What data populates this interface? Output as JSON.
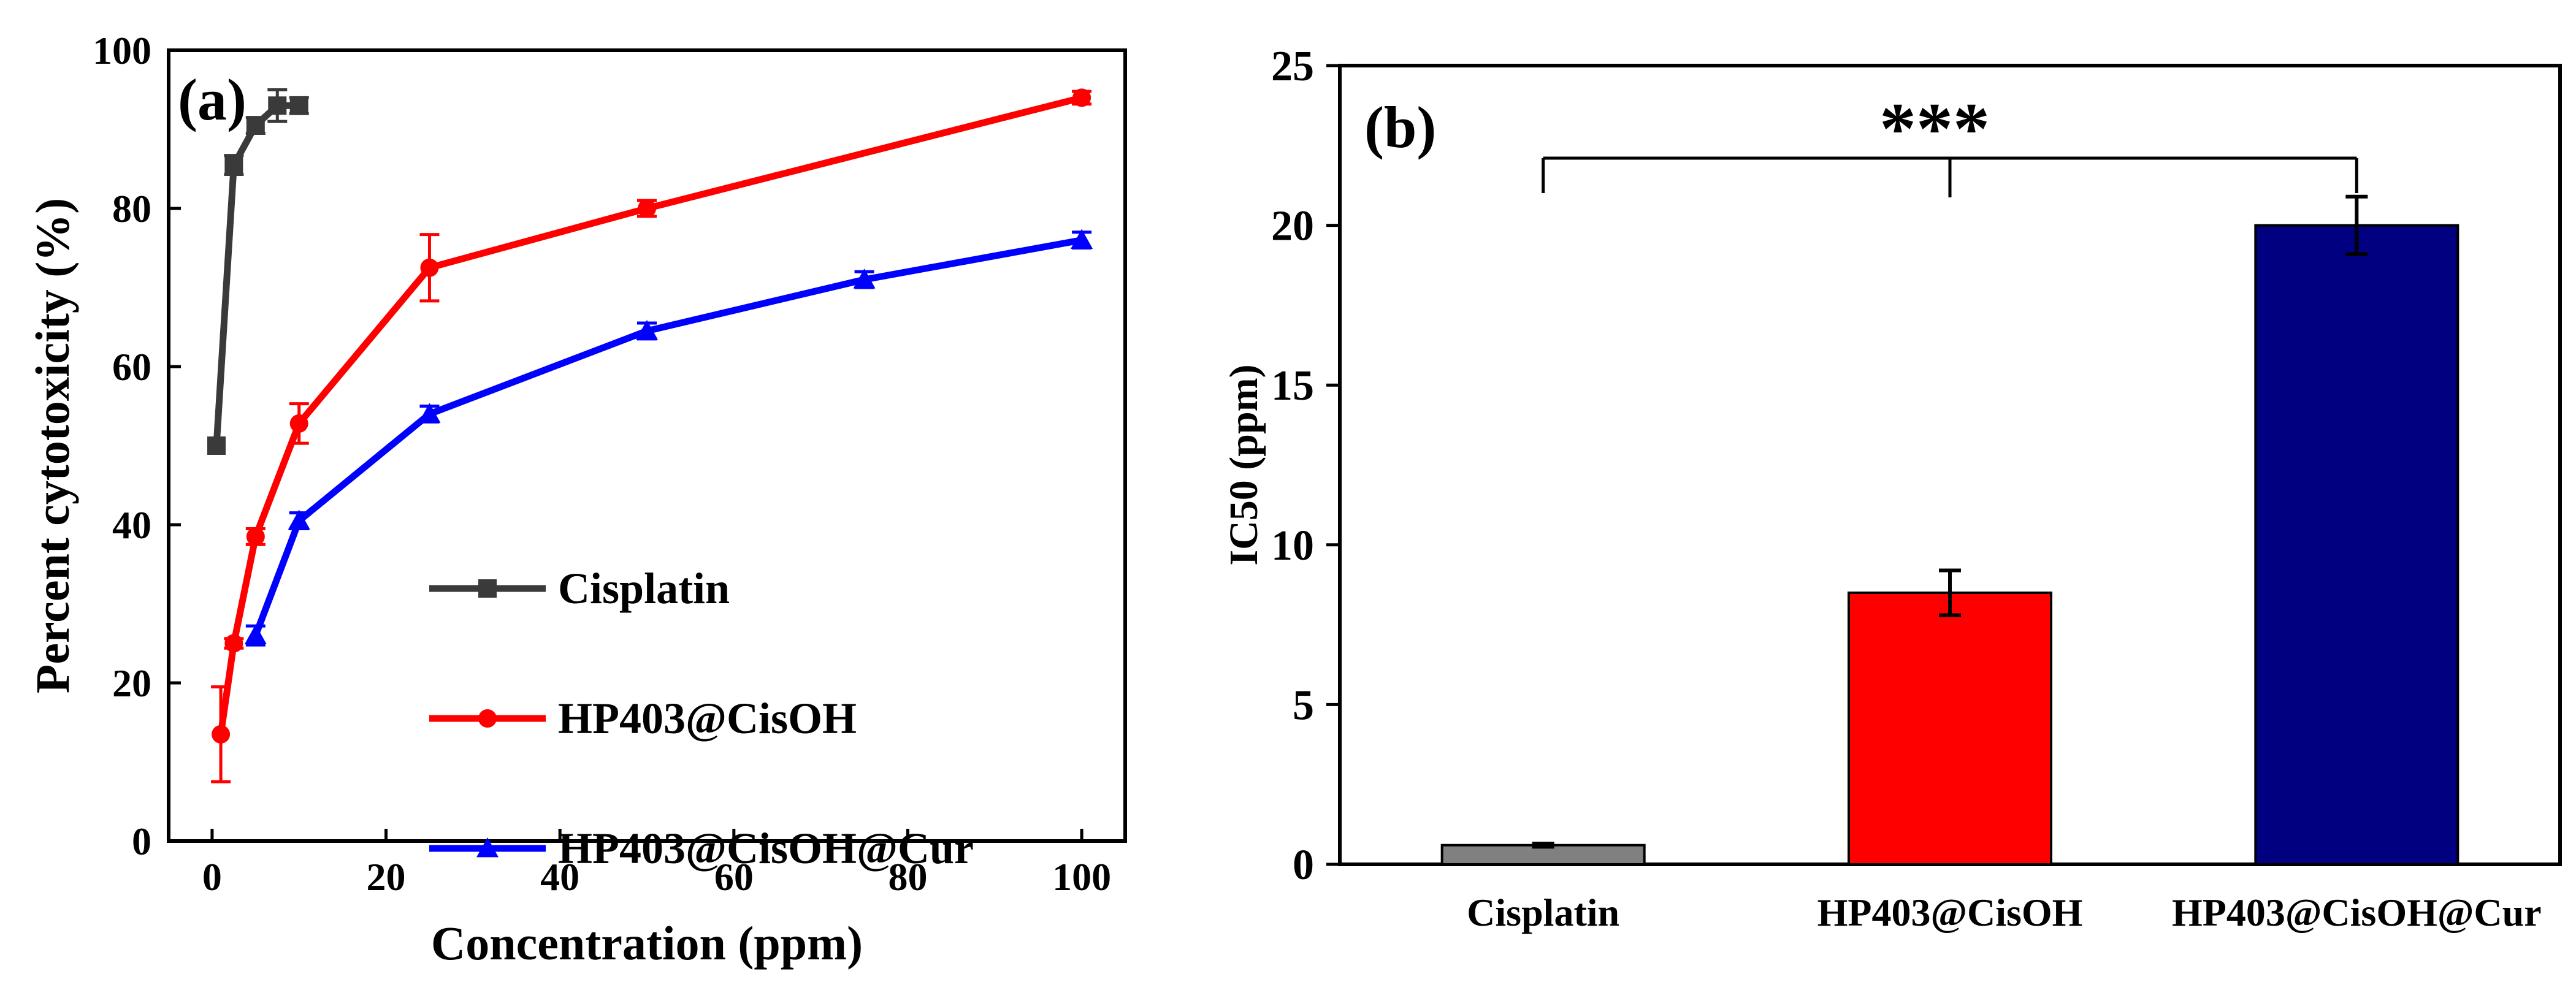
{
  "chart_data": [
    {
      "panel": "(a)",
      "type": "line",
      "xlabel": "Concentration (ppm)",
      "ylabel": "Percent cytotoxicity (%)",
      "xlim": [
        -5,
        105
      ],
      "ylim": [
        0,
        100
      ],
      "xticks": [
        0,
        20,
        40,
        60,
        80,
        100
      ],
      "yticks": [
        0,
        20,
        40,
        60,
        80,
        100
      ],
      "grid": false,
      "legend_position": "lower-right",
      "series": [
        {
          "name": "Cisplatin",
          "color": "#3a3a3a",
          "marker": "square",
          "x": [
            0.5,
            2.5,
            5,
            7.5,
            10
          ],
          "y": [
            50,
            85.5,
            90.5,
            93,
            93
          ],
          "err": [
            0,
            1.2,
            1,
            2,
            1
          ]
        },
        {
          "name": "HP403@CisOH",
          "color": "#ff0000",
          "marker": "circle",
          "x": [
            1,
            2.5,
            5,
            10,
            25,
            50,
            100
          ],
          "y": [
            13.5,
            25,
            38.5,
            52.8,
            72.5,
            80,
            94
          ],
          "err": [
            6,
            0.6,
            1,
            2.5,
            4.2,
            1,
            0.8
          ]
        },
        {
          "name": "HP403@CisOH@Cur",
          "color": "#0000ff",
          "marker": "triangle",
          "x": [
            5,
            10,
            25,
            50,
            75,
            100
          ],
          "y": [
            26,
            40.5,
            54,
            64.5,
            71,
            76
          ],
          "err": [
            1.2,
            1,
            1,
            1,
            1,
            1
          ]
        }
      ]
    },
    {
      "panel": "(b)",
      "type": "bar",
      "ylabel": "IC50 (ppm)",
      "categories": [
        "Cisplatin",
        "HP403@CisOH",
        "HP403@CisOH@Cur"
      ],
      "values": [
        0.6,
        8.5,
        20
      ],
      "errors": [
        0.05,
        0.7,
        0.9
      ],
      "colors": [
        "#808080",
        "#ff0000",
        "#000080"
      ],
      "ylim": [
        0,
        25
      ],
      "yticks": [
        0,
        5,
        10,
        15,
        20,
        25
      ],
      "grid": false,
      "annotation": "***"
    }
  ]
}
